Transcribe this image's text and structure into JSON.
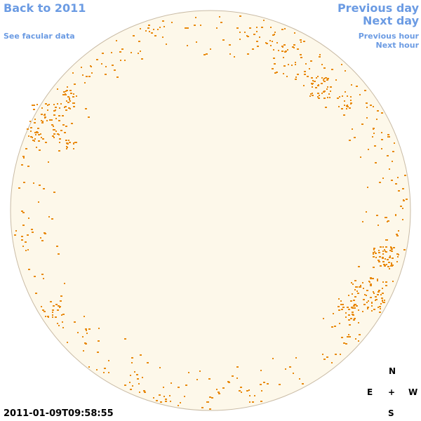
{
  "nav": {
    "back": "Back to 2011",
    "facular": "See facular data",
    "previous_day": "Previous day",
    "next_day": "Next day",
    "previous_hour": "Previous hour",
    "next_hour": "Next hour"
  },
  "compass": {
    "north": "N",
    "east": "E",
    "center": "+",
    "west": "W",
    "south": "S"
  },
  "timestamp": "2011-01-09T09:58:55"
}
